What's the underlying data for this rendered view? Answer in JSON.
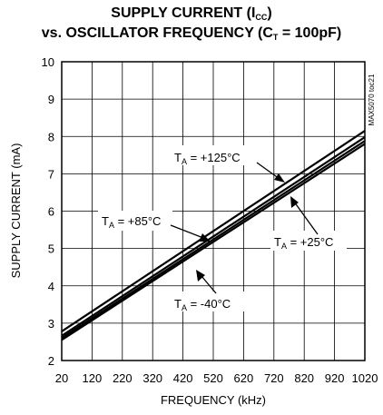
{
  "chart_data": {
    "type": "line",
    "title": {
      "line1_main": "SUPPLY CURRENT (I",
      "line1_sub": "CC",
      "line1_end": ")",
      "line2_main": "vs. OSCILLATOR FREQUENCY (C",
      "line2_sub": "T",
      "line2_end": " = 100pF)"
    },
    "xlabel": "FREQUENCY (kHz)",
    "ylabel": "SUPPLY CURRENT (mA)",
    "side_label": "MAX5070 toc21",
    "xlim": [
      20,
      1020
    ],
    "ylim": [
      2,
      10
    ],
    "xticks": [
      "20",
      "120",
      "220",
      "320",
      "420",
      "520",
      "620",
      "720",
      "820",
      "920",
      "1020"
    ],
    "yticks": [
      "2",
      "3",
      "4",
      "5",
      "6",
      "7",
      "8",
      "9",
      "10"
    ],
    "grid": true,
    "series": [
      {
        "name": "T_A = +125°C",
        "x": [
          20,
          1020
        ],
        "y": [
          2.78,
          8.15
        ]
      },
      {
        "name": "T_A = +85°C",
        "x": [
          20,
          1020
        ],
        "y": [
          2.66,
          7.98
        ]
      },
      {
        "name": "T_A = +25°C",
        "x": [
          20,
          1020
        ],
        "y": [
          2.6,
          7.88
        ]
      },
      {
        "name": "T_A = -40°C",
        "x": [
          20,
          1020
        ],
        "y": [
          2.55,
          7.8
        ]
      }
    ],
    "annotations": [
      {
        "prefix": "T",
        "sub": "A",
        "text": " = +125°C"
      },
      {
        "prefix": "T",
        "sub": "A",
        "text": " = +85°C"
      },
      {
        "prefix": "T",
        "sub": "A",
        "text": " = +25°C"
      },
      {
        "prefix": "T",
        "sub": "A",
        "text": " = -40°C"
      }
    ]
  }
}
